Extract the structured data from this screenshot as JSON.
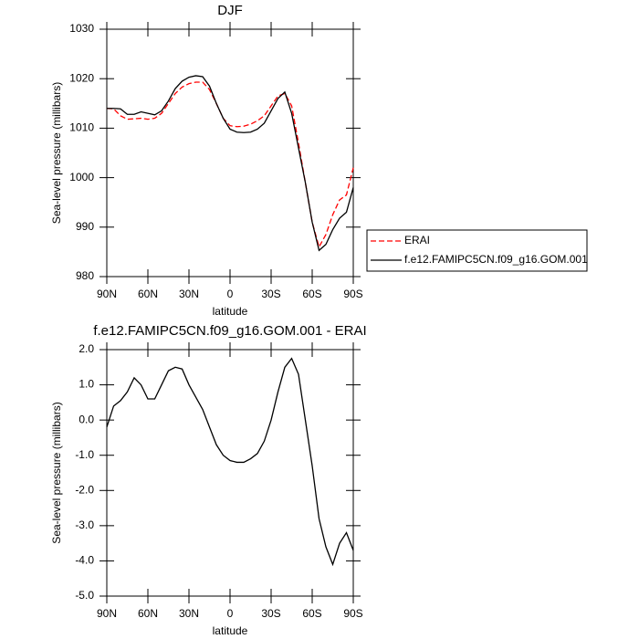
{
  "chart_data": [
    {
      "type": "line",
      "title": "DJF",
      "xlabel": "latitude",
      "ylabel": "Sea-level pressure (millibars)",
      "x": [
        90,
        85,
        80,
        75,
        70,
        65,
        60,
        55,
        50,
        45,
        40,
        35,
        30,
        25,
        20,
        15,
        10,
        5,
        0,
        -5,
        -10,
        -15,
        -20,
        -25,
        -30,
        -35,
        -40,
        -45,
        -50,
        -55,
        -60,
        -65,
        -70,
        -75,
        -80,
        -85,
        -90
      ],
      "series": [
        {
          "name": "ERAI",
          "color": "#ff0000",
          "dashed": true,
          "values": [
            1014,
            1013.9,
            1012.5,
            1011.8,
            1011.9,
            1012,
            1011.8,
            1012,
            1013,
            1015,
            1017,
            1018.3,
            1019,
            1019.3,
            1019.3,
            1017.8,
            1015,
            1012,
            1010.5,
            1010.3,
            1010.4,
            1010.8,
            1011.5,
            1012.5,
            1014.5,
            1016.5,
            1017,
            1014.5,
            1007,
            999,
            991,
            986,
            988.5,
            992.5,
            995.5,
            996.5,
            1002
          ]
        },
        {
          "name": "f.e12.FAMIPC5CN.f09_g16.GOM.001",
          "color": "#000000",
          "dashed": false,
          "values": [
            1014,
            1014,
            1013.9,
            1012.8,
            1012.8,
            1013.3,
            1013,
            1012.7,
            1013.5,
            1015.5,
            1018,
            1019.5,
            1020.3,
            1020.6,
            1020.4,
            1018.5,
            1015,
            1012,
            1009.8,
            1009.2,
            1009.1,
            1009.2,
            1009.8,
            1011,
            1013.5,
            1016,
            1017.3,
            1013,
            1006,
            999,
            991,
            985.3,
            986.5,
            989.5,
            991.8,
            993,
            998
          ]
        }
      ],
      "xlim": [
        90,
        -90
      ],
      "xticks": [
        {
          "value": 90,
          "label": "90N"
        },
        {
          "value": 60,
          "label": "60N"
        },
        {
          "value": 30,
          "label": "30N"
        },
        0,
        {
          "value": -30,
          "label": "30S"
        },
        {
          "value": -60,
          "label": "60S"
        },
        {
          "value": -90,
          "label": "90S"
        }
      ],
      "ylim": [
        980,
        1030
      ],
      "yticks": [
        980,
        990,
        1000,
        1010,
        1020,
        1030
      ],
      "legend": "right"
    },
    {
      "type": "line",
      "title": "f.e12.FAMIPC5CN.f09_g16.GOM.001 - ERAI",
      "xlabel": "latitude",
      "ylabel": "Sea-level pressure (millibars)",
      "x": [
        90,
        85,
        80,
        75,
        70,
        65,
        60,
        55,
        50,
        45,
        40,
        35,
        30,
        25,
        20,
        15,
        10,
        5,
        0,
        -5,
        -10,
        -15,
        -20,
        -25,
        -30,
        -35,
        -40,
        -45,
        -50,
        -55,
        -60,
        -65,
        -70,
        -75,
        -80,
        -85,
        -90
      ],
      "series": [
        {
          "color": "#000000",
          "dashed": false,
          "values": [
            -0.2,
            0.4,
            0.55,
            0.8,
            1.2,
            1.0,
            0.6,
            0.6,
            1.0,
            1.4,
            1.5,
            1.45,
            1.0,
            0.65,
            0.3,
            -0.2,
            -0.7,
            -1.0,
            -1.15,
            -1.2,
            -1.2,
            -1.1,
            -0.95,
            -0.6,
            0.0,
            0.8,
            1.5,
            1.75,
            1.3,
            0.0,
            -1.3,
            -2.8,
            -3.6,
            -4.1,
            -3.5,
            -3.2,
            -3.7
          ]
        }
      ],
      "xlim": [
        90,
        -90
      ],
      "xticks": [
        {
          "value": 90,
          "label": "90N"
        },
        {
          "value": 60,
          "label": "60N"
        },
        {
          "value": 30,
          "label": "30N"
        },
        0,
        {
          "value": -30,
          "label": "30S"
        },
        {
          "value": -60,
          "label": "60S"
        },
        {
          "value": -90,
          "label": "90S"
        }
      ],
      "ylim": [
        -5,
        2
      ],
      "yticks": [
        {
          "value": -5,
          "label": "-5.0"
        },
        {
          "value": -4,
          "label": "-4.0"
        },
        {
          "value": -3,
          "label": "-3.0"
        },
        {
          "value": -2,
          "label": "-2.0"
        },
        {
          "value": -1,
          "label": "-1.0"
        },
        {
          "value": 0,
          "label": "0.0"
        },
        {
          "value": 1,
          "label": "1.0"
        },
        {
          "value": 2,
          "label": "2.0"
        }
      ]
    }
  ]
}
